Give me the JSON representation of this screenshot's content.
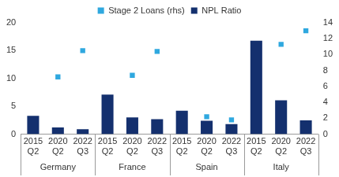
{
  "chart_data": {
    "type": "bar",
    "categories": [
      "2015 Q2",
      "2020 Q2",
      "2022 Q3",
      "2015 Q2",
      "2020 Q2",
      "2022 Q3",
      "2015 Q2",
      "2020 Q2",
      "2022 Q3",
      "2015 Q2",
      "2020 Q2",
      "2022 Q3"
    ],
    "groups": [
      {
        "name": "Germany",
        "count": 3
      },
      {
        "name": "France",
        "count": 3
      },
      {
        "name": "Spain",
        "count": 3
      },
      {
        "name": "Italy",
        "count": 3
      }
    ],
    "series": [
      {
        "name": "NPL Ratio",
        "type": "bar",
        "color": "#14306e",
        "values": [
          3.3,
          1.2,
          0.9,
          7.1,
          3.0,
          2.7,
          4.2,
          2.4,
          1.8,
          16.8,
          6.1,
          2.5
        ]
      },
      {
        "name": "Stage 2 Loans (rhs)",
        "type": "scatter",
        "marker": "square",
        "axis": "y2",
        "color": "#2fa8df",
        "values": [
          null,
          7.2,
          10.5,
          null,
          7.4,
          10.4,
          null,
          2.2,
          1.8,
          null,
          11.3,
          13.0
        ]
      }
    ],
    "ylim": [
      0,
      20
    ],
    "yticks": [
      0,
      5,
      10,
      15,
      20
    ],
    "y2lim": [
      0,
      14
    ],
    "y2ticks": [
      0,
      2,
      4,
      6,
      8,
      10,
      12,
      14
    ],
    "grid": false,
    "legend": "top"
  }
}
